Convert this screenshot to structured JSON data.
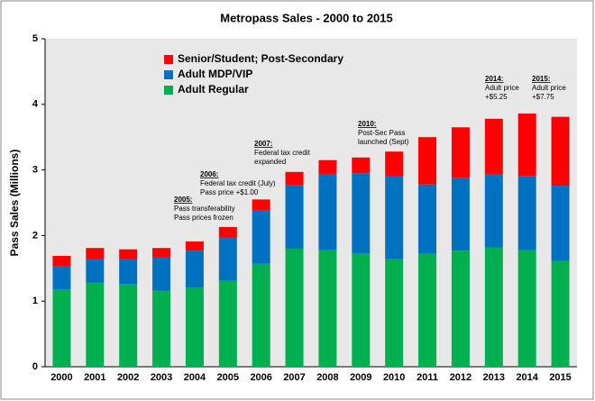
{
  "chart_data": {
    "type": "stacked_bar",
    "title": "Metropass Sales - 2000 to 2015",
    "y_label": "Pass Sales (Millions)",
    "categories": [
      "2000",
      "2001",
      "2002",
      "2003",
      "2004",
      "2005",
      "2006",
      "2007",
      "2008",
      "2009",
      "2010",
      "2011",
      "2012",
      "2013",
      "2014",
      "2015"
    ],
    "series": [
      {
        "name": "Adult Regular",
        "color": "#00b050",
        "values": [
          1.18,
          1.28,
          1.26,
          1.16,
          1.21,
          1.31,
          1.57,
          1.8,
          1.78,
          1.73,
          1.64,
          1.72,
          1.77,
          1.82,
          1.78,
          1.61
        ]
      },
      {
        "name": "Adult MDP/VIP",
        "color": "#0070c0",
        "values": [
          0.35,
          0.36,
          0.38,
          0.51,
          0.56,
          0.66,
          0.81,
          0.97,
          1.16,
          1.22,
          1.26,
          1.06,
          1.11,
          1.12,
          1.13,
          1.15
        ]
      },
      {
        "name": "Senior/Student; Post-Secondary",
        "color": "#ff0000",
        "values": [
          0.16,
          0.17,
          0.15,
          0.14,
          0.14,
          0.16,
          0.17,
          0.2,
          0.21,
          0.24,
          0.38,
          0.72,
          0.77,
          0.84,
          0.95,
          1.05
        ]
      }
    ],
    "ylim": [
      0,
      5
    ],
    "yticks": [
      0,
      1,
      2,
      3,
      4,
      5
    ],
    "grid": false,
    "annotations": [
      {
        "label": "2005:",
        "text": [
          "Pass transferability",
          "Pass prices frozen"
        ]
      },
      {
        "label": "2006:",
        "text": [
          "Federal tax credit (July)",
          "Pass price +$1.00"
        ]
      },
      {
        "label": "2007:",
        "text": [
          "Federal tax credit",
          "expanded"
        ]
      },
      {
        "label": "2010:",
        "text": [
          "Post-Sec Pass",
          "launched (Sept)"
        ]
      },
      {
        "label": "2014:",
        "text": [
          "Adult price",
          "+$5.25"
        ]
      },
      {
        "label": "2015:",
        "text": [
          "Adult price",
          "+$7.75"
        ]
      }
    ]
  }
}
